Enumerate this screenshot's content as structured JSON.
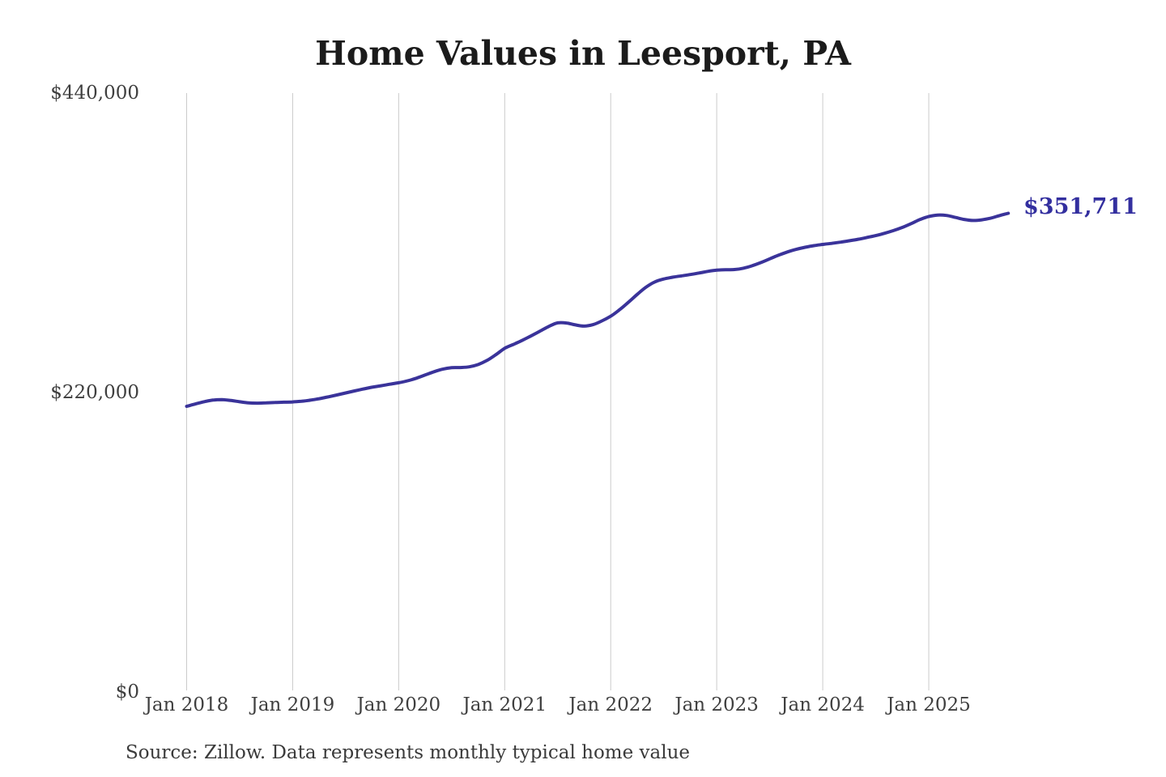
{
  "chart": {
    "title": "Home Values in Leesport, PA",
    "end_label": "$351,711",
    "source_note": "Source: Zillow. Data represents monthly typical home value",
    "line_color": "#3a339a",
    "end_label_color": "#332f9f",
    "grid_color": "#cbcbcb",
    "axis_text_color": "#3f3f3f",
    "title_color": "#1b1b1b"
  },
  "chart_data": {
    "type": "line",
    "title": "Home Values in Leesport, PA",
    "xlabel": "",
    "ylabel": "",
    "ylim": [
      0,
      440000
    ],
    "y_tick_values": [
      0,
      220000,
      440000
    ],
    "y_tick_labels": [
      "$0",
      "$220,000",
      "$440,000"
    ],
    "x_tick_labels": [
      "Jan 2018",
      "Jan 2019",
      "Jan 2020",
      "Jan 2021",
      "Jan 2022",
      "Jan 2023",
      "Jan 2024",
      "Jan 2025"
    ],
    "x_start_month": "Jan 2018",
    "x_end_month": "Oct 2025",
    "points_per_year": 12,
    "grid": "vertical-only",
    "legend": "none",
    "annotations": [
      {
        "text": "$351,711",
        "position": "line-end"
      }
    ],
    "final_value": 351711,
    "series": [
      {
        "name": "Monthly typical home value",
        "values": [
          209900,
          211600,
          213300,
          214500,
          214800,
          214200,
          213200,
          212400,
          212200,
          212400,
          212700,
          212900,
          213100,
          213600,
          214400,
          215500,
          216800,
          218200,
          219700,
          221200,
          222600,
          223900,
          225000,
          226100,
          227200,
          228600,
          230500,
          232900,
          235300,
          237200,
          238300,
          238400,
          238900,
          240600,
          243600,
          247800,
          252500,
          255400,
          258400,
          261700,
          265100,
          268600,
          271200,
          271100,
          269700,
          268800,
          269900,
          272600,
          276100,
          280800,
          286300,
          292100,
          297400,
          301300,
          303400,
          304700,
          305700,
          306700,
          307800,
          309000,
          309900,
          310200,
          310400,
          311300,
          313100,
          315500,
          318200,
          320900,
          323300,
          325200,
          326700,
          327900,
          328800,
          329600,
          330500,
          331500,
          332600,
          333900,
          335300,
          337000,
          339000,
          341300,
          344100,
          347100,
          349300,
          350400,
          350100,
          348700,
          347200,
          346400,
          346900,
          348100,
          350000,
          351711
        ]
      }
    ]
  }
}
